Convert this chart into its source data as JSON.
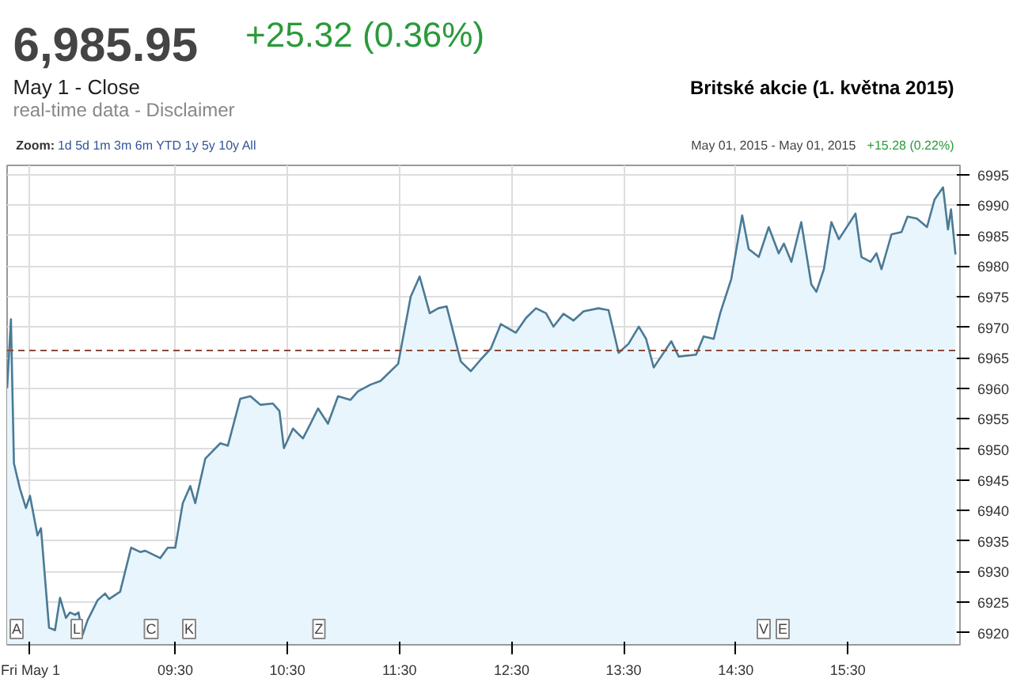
{
  "chart_data": {
    "type": "area",
    "title": "6,985.95",
    "subtitle": "+25.32 (0.36%)",
    "annotations": [
      "May 1 - Close",
      "real-time data - Disclaimer",
      "Britské akcie (1. května 2015)",
      "Zoom:",
      "1d  5d  1m  3m  6m  YTD  1y  5y  10y  All",
      "May 01, 2015 - May 01, 2015",
      "+15.28 (0.22%)",
      "A",
      "L",
      "C",
      "K",
      "Z",
      "V",
      "E"
    ],
    "x": [
      8.0,
      8.034,
      8.061,
      8.114,
      8.168,
      8.204,
      8.271,
      8.302,
      8.374,
      8.427,
      8.472,
      8.525,
      8.561,
      8.606,
      8.637,
      8.673,
      8.717,
      8.807,
      8.874,
      8.91,
      9.008,
      9.106,
      9.187,
      9.232,
      9.366,
      9.433,
      9.5,
      9.567,
      9.634,
      9.678,
      9.768,
      9.902,
      9.969,
      10.08,
      10.17,
      10.259,
      10.371,
      10.429,
      10.469,
      10.55,
      10.639,
      10.706,
      10.774,
      10.862,
      10.952,
      11.063,
      11.13,
      11.242,
      11.331,
      11.488,
      11.6,
      11.68,
      11.77,
      11.846,
      11.921,
      12.047,
      12.136,
      12.225,
      12.315,
      12.404,
      12.538,
      12.628,
      12.717,
      12.807,
      12.874,
      12.963,
      13.053,
      13.142,
      13.275,
      13.365,
      13.455,
      13.544,
      13.635,
      13.7,
      13.768,
      13.834,
      13.925,
      13.991,
      14.146,
      14.213,
      14.303,
      14.361,
      14.46,
      14.557,
      14.615,
      14.705,
      14.794,
      14.883,
      14.929,
      14.996,
      15.084,
      15.174,
      15.219,
      15.286,
      15.353,
      15.42,
      15.568,
      15.621,
      15.702,
      15.755,
      15.8,
      15.889,
      15.979,
      16.032,
      16.116,
      16.206,
      16.273,
      16.349,
      16.393,
      16.42,
      16.46
    ],
    "series": [
      {
        "color": "#4a7a96",
        "values": [
          6960.0,
          6971.3,
          6947.7,
          6943.6,
          6940.4,
          6942.4,
          6935.9,
          6937.1,
          6920.8,
          6920.4,
          6925.7,
          6922.4,
          6923.3,
          6922.9,
          6923.3,
          6919.6,
          6922.0,
          6925.3,
          6926.4,
          6925.5,
          6926.7,
          6933.9,
          6933.2,
          6933.4,
          6932.2,
          6933.9,
          6933.9,
          6941.2,
          6944.0,
          6941.2,
          6948.5,
          6951.0,
          6950.6,
          6958.3,
          6958.7,
          6957.3,
          6957.5,
          6956.3,
          6950.2,
          6953.4,
          6951.8,
          6954.2,
          6956.7,
          6954.2,
          6958.7,
          6958.1,
          6959.5,
          6960.6,
          6961.2,
          6964.0,
          6975.0,
          6978.3,
          6972.3,
          6973.1,
          6973.4,
          6964.4,
          6962.8,
          6964.7,
          6966.5,
          6970.5,
          6969.1,
          6971.5,
          6973.1,
          6972.3,
          6970.1,
          6972.2,
          6971.1,
          6972.6,
          6973.1,
          6972.8,
          6965.8,
          6967.3,
          6970.1,
          6968.1,
          6963.4,
          6965.2,
          6967.7,
          6965.2,
          6965.5,
          6968.5,
          6968.1,
          6972.3,
          6977.9,
          6988.3,
          6982.8,
          6981.5,
          6986.4,
          6982.1,
          6983.7,
          6980.7,
          6987.2,
          6977.0,
          6975.8,
          6979.5,
          6987.2,
          6984.4,
          6988.6,
          6981.5,
          6980.7,
          6982.1,
          6979.5,
          6985.2,
          6985.6,
          6988.1,
          6987.8,
          6986.4,
          6990.9,
          6992.9,
          6986.0,
          6989.3,
          6981.9
        ]
      }
    ],
    "xlim": [
      8,
      16.5
    ],
    "xticks": [
      {
        "value": 8.2,
        "label": "Fri May 1"
      },
      {
        "value": 9.5,
        "label": "09:30"
      },
      {
        "value": 10.5,
        "label": "10:30"
      },
      {
        "value": 11.5,
        "label": "11:30"
      },
      {
        "value": 12.5,
        "label": "12:30"
      },
      {
        "value": 13.5,
        "label": "13:30"
      },
      {
        "value": 14.5,
        "label": "14:30"
      },
      {
        "value": 15.5,
        "label": "15:30"
      }
    ],
    "ylim": [
      6918,
      6996.5
    ],
    "yticks": [
      6920,
      6925,
      6930,
      6935,
      6940,
      6945,
      6950,
      6955,
      6960,
      6965,
      6970,
      6975,
      6980,
      6985,
      6990,
      6995
    ],
    "ref_lines": [
      {
        "axis": "y",
        "value": 6966.2,
        "color": "#8a4a3a",
        "line_style": "dashed"
      }
    ],
    "grid": true
  }
}
